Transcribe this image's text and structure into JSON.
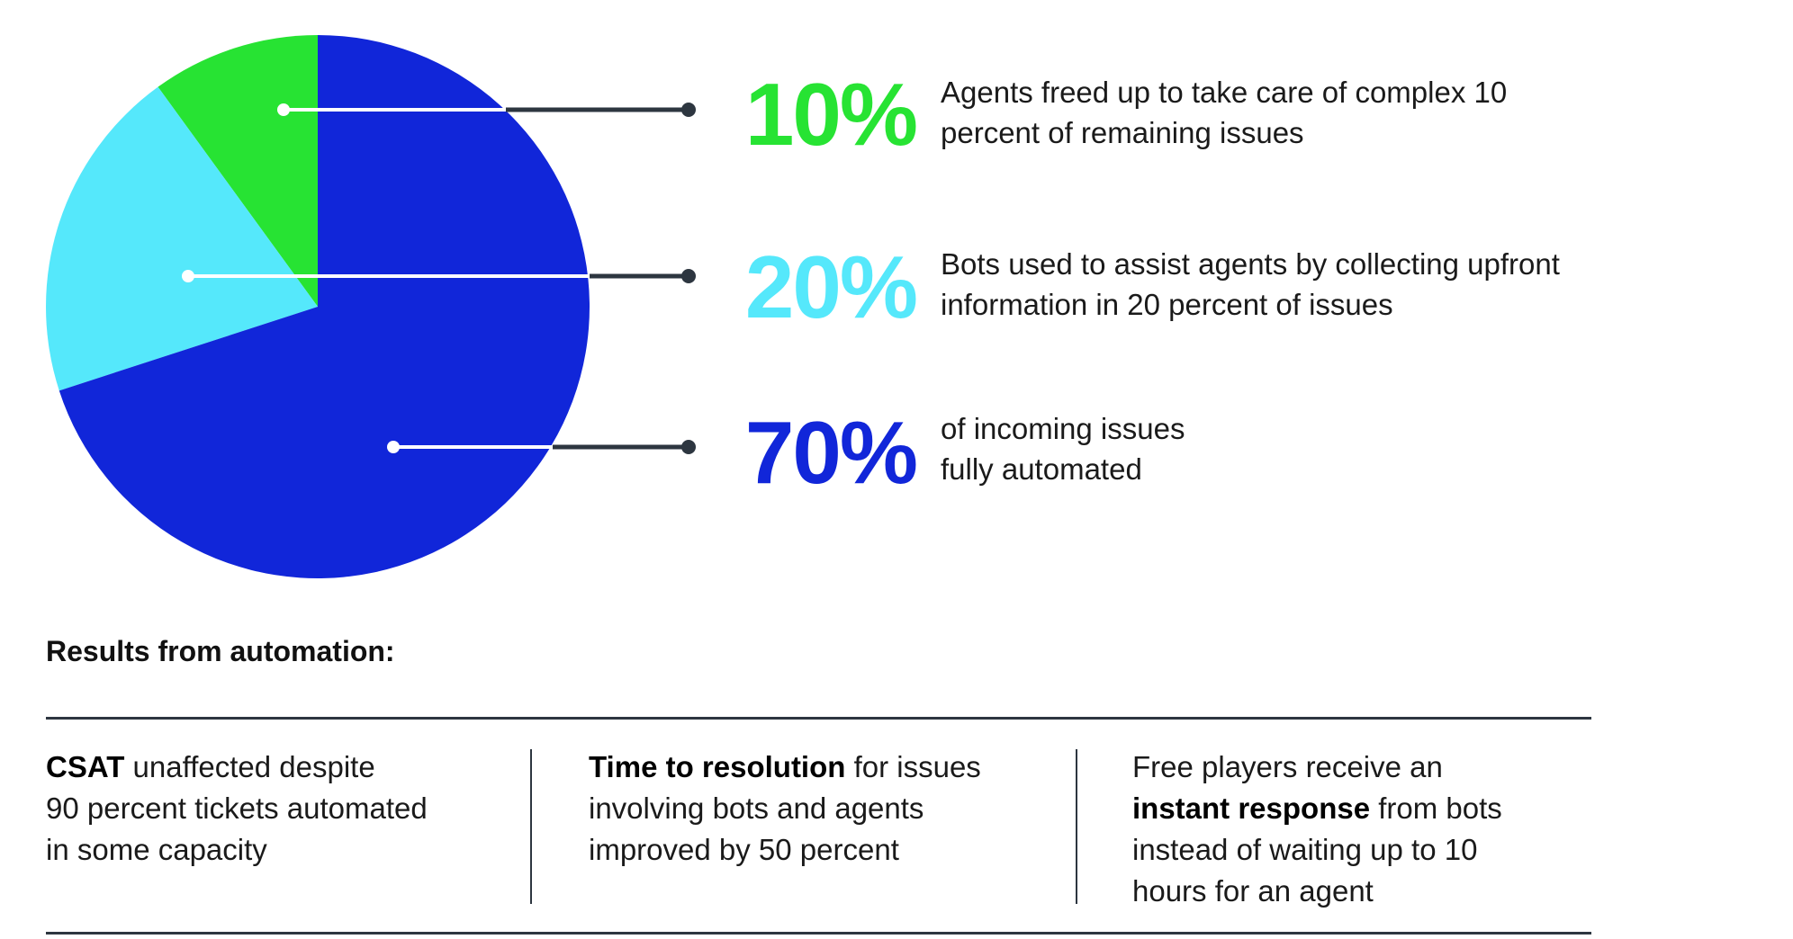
{
  "chart_data": {
    "type": "pie",
    "start": "top",
    "direction": "counterclockwise",
    "slices": [
      {
        "label": "10%",
        "value": 10,
        "color": "#27e333",
        "description": "Agents freed up to take care of complex 10 percent of remaining issues"
      },
      {
        "label": "20%",
        "value": 20,
        "color": "#55e8fb",
        "description": "Bots used to assist agents by collecting upfront information in 20 percent of issues"
      },
      {
        "label": "70%",
        "value": 70,
        "color": "#1126d9",
        "description": "of incoming issues fully automated"
      }
    ]
  },
  "callouts": [
    {
      "value": "10%",
      "line1": "Agents freed up to take care of complex 10",
      "line2": "percent of remaining issues"
    },
    {
      "value": "20%",
      "line1": "Bots used to assist agents by collecting upfront",
      "line2": "information in 20 percent of issues"
    },
    {
      "value": "70%",
      "line1": "of incoming issues",
      "line2": "fully automated"
    }
  ],
  "results": {
    "title": "Results from automation:",
    "columns": [
      {
        "bold": "CSAT",
        "rest1": " unaffected despite",
        "line2": "90 percent tickets automated",
        "line3": "in some capacity"
      },
      {
        "bold": "Time to resolution",
        "rest1": " for issues",
        "line2": "involving bots and agents",
        "line3": "improved by 50 percent"
      },
      {
        "line1": "Free players receive an",
        "bold": "instant response",
        "rest2": " from bots",
        "line3": "instead of waiting up to 10",
        "line4": "hours for an agent"
      }
    ]
  },
  "colors": {
    "leader": "#2d3640",
    "rule": "#2d3640"
  }
}
